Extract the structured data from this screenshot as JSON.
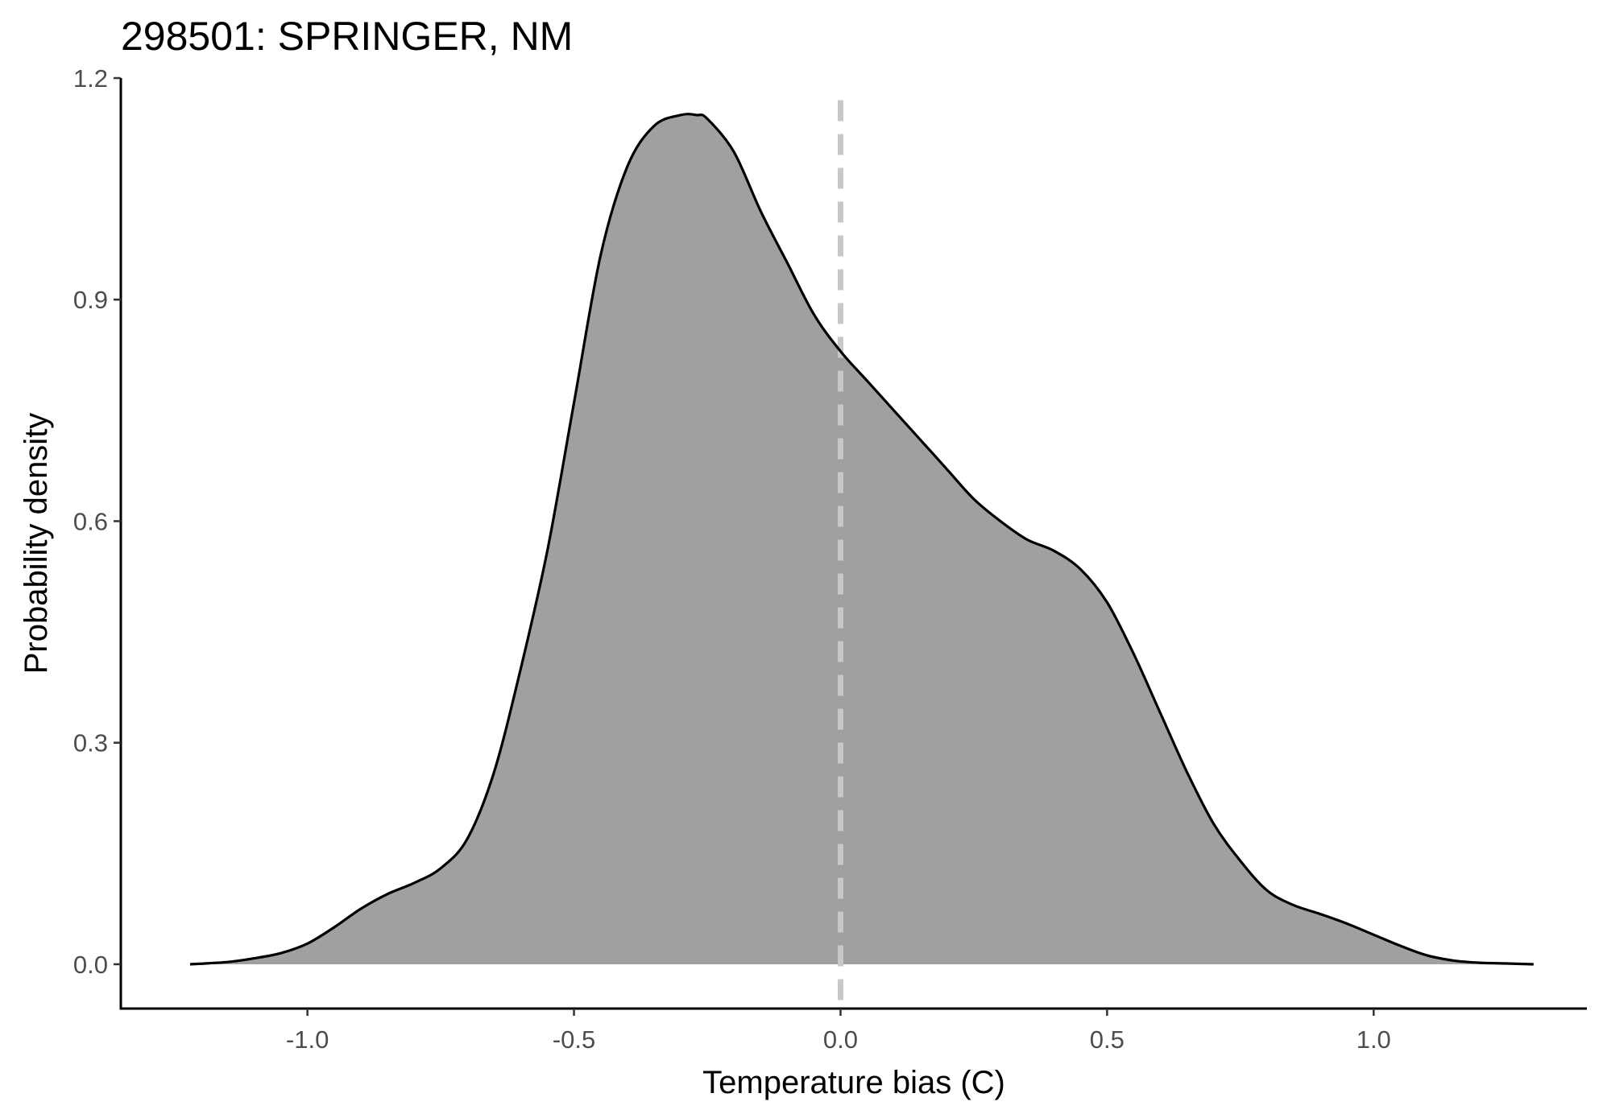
{
  "chart_data": {
    "type": "area",
    "title": "298501: SPRINGER, NM",
    "xlabel": "Temperature bias (C)",
    "ylabel": "Probability density",
    "xlim": [
      -1.35,
      1.4
    ],
    "ylim": [
      -0.06,
      1.2
    ],
    "x_ticks": [
      -1.0,
      -0.5,
      0.0,
      0.5,
      1.0
    ],
    "x_tick_labels": [
      "-1.0",
      "-0.5",
      "0.0",
      "0.5",
      "1.0"
    ],
    "y_ticks": [
      0.0,
      0.3,
      0.6,
      0.9,
      1.2
    ],
    "y_tick_labels": [
      "0.0",
      "0.3",
      "0.6",
      "0.9",
      "1.2"
    ],
    "reference_line": {
      "x": 0.0,
      "style": "dashed",
      "color": "#c8c8c8"
    },
    "fill_color": "#a0a0a0",
    "line_color": "#000000",
    "grid": false,
    "series": [
      {
        "x": [
          -1.22,
          -1.15,
          -1.1,
          -1.05,
          -1.0,
          -0.95,
          -0.9,
          -0.85,
          -0.8,
          -0.75,
          -0.7,
          -0.65,
          -0.6,
          -0.55,
          -0.5,
          -0.45,
          -0.4,
          -0.35,
          -0.3,
          -0.27,
          -0.25,
          -0.2,
          -0.15,
          -0.1,
          -0.05,
          0.0,
          0.05,
          0.1,
          0.15,
          0.2,
          0.25,
          0.3,
          0.35,
          0.4,
          0.45,
          0.5,
          0.55,
          0.6,
          0.65,
          0.7,
          0.75,
          0.8,
          0.85,
          0.9,
          0.95,
          1.0,
          1.05,
          1.1,
          1.15,
          1.2,
          1.25,
          1.3
        ],
        "y": [
          0.0,
          0.003,
          0.008,
          0.015,
          0.028,
          0.05,
          0.075,
          0.095,
          0.11,
          0.13,
          0.17,
          0.26,
          0.4,
          0.56,
          0.76,
          0.96,
          1.08,
          1.135,
          1.15,
          1.15,
          1.145,
          1.1,
          1.02,
          0.95,
          0.88,
          0.83,
          0.79,
          0.75,
          0.71,
          0.67,
          0.63,
          0.6,
          0.575,
          0.56,
          0.535,
          0.49,
          0.42,
          0.34,
          0.26,
          0.19,
          0.14,
          0.1,
          0.08,
          0.068,
          0.055,
          0.04,
          0.025,
          0.012,
          0.005,
          0.002,
          0.001,
          0.0
        ]
      }
    ]
  }
}
